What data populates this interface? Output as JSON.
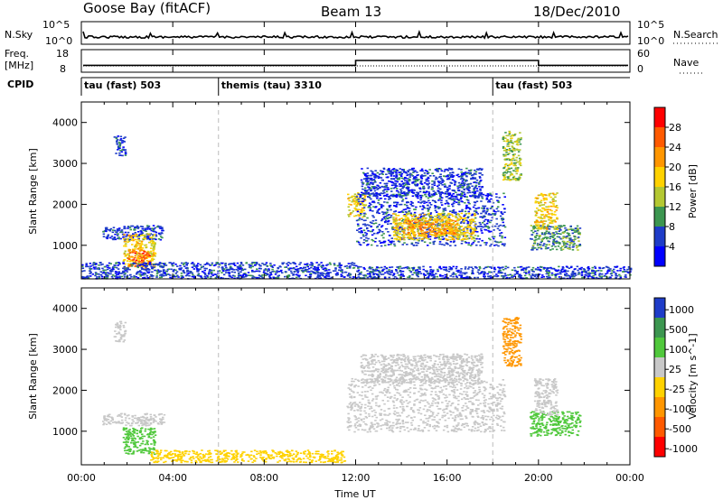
{
  "header": {
    "station": "Goose Bay (fitACF)",
    "beam": "Beam 13",
    "date": "18/Dec/2010"
  },
  "noise_panel": {
    "left_label": "N.Sky",
    "right_label": "N.Search",
    "ticks_left": [
      "10^5",
      "10^0"
    ],
    "ticks_right": [
      "10^5",
      "10^0"
    ]
  },
  "freq_panel": {
    "left_label_1": "Freq.",
    "left_label_2": "[MHz]",
    "right_label": "Nave",
    "ticks_left": [
      "18",
      "8"
    ],
    "ticks_right": [
      "60",
      "0"
    ]
  },
  "cpid": {
    "label": "CPID",
    "segments": [
      {
        "text": "tau (fast) 503",
        "start": 0
      },
      {
        "text": "themis (tau) 3310",
        "start": 6
      },
      {
        "text": "tau (fast) 503",
        "start": 18
      }
    ]
  },
  "power_panel": {
    "ylabel": "Slant Range [km]",
    "yticks": [
      "1000",
      "2000",
      "3000",
      "4000"
    ],
    "colorbar_label": "Power [dB]",
    "colorbar_ticks": [
      "28",
      "24",
      "20",
      "16",
      "12",
      "8",
      "4"
    ],
    "colorbar_colors": [
      "#ff0000",
      "#ff5a00",
      "#ff9600",
      "#ffd200",
      "#b4c832",
      "#3c9650",
      "#1e3cc8",
      "#0000ff"
    ]
  },
  "velocity_panel": {
    "ylabel": "Slant Range [km]",
    "yticks": [
      "1000",
      "2000",
      "3000",
      "4000"
    ],
    "colorbar_label": "Velocity [m s^-1]",
    "colorbar_ticks": [
      "1000",
      "500",
      "100",
      "25",
      "-25",
      "-100",
      "-500",
      "-1000"
    ],
    "colorbar_colors": [
      "#1e3cc8",
      "#3c9650",
      "#50c83c",
      "#c8c8c8",
      "#ffd200",
      "#ff9600",
      "#ff5a00",
      "#ff0000"
    ]
  },
  "x_axis": {
    "label": "Time UT",
    "ticks": [
      "00:00",
      "04:00",
      "08:00",
      "12:00",
      "16:00",
      "20:00",
      "00:00"
    ]
  },
  "chart_data": {
    "type": "heatmap",
    "x_range_hours": [
      0,
      24
    ],
    "y_range_km": [
      180,
      4500
    ],
    "power_regions": [
      {
        "t0": 0.9,
        "t1": 3.6,
        "r0": 1150,
        "r1": 1500,
        "db": 8
      },
      {
        "t0": 1.8,
        "t1": 3.2,
        "r0": 450,
        "r1": 1300,
        "db": 20
      },
      {
        "t0": 2.0,
        "t1": 3.0,
        "r0": 500,
        "r1": 900,
        "db": 28
      },
      {
        "t0": 1.4,
        "t1": 1.9,
        "r0": 3200,
        "r1": 3700,
        "db": 8
      },
      {
        "t0": 0.0,
        "t1": 12.0,
        "r0": 200,
        "r1": 600,
        "db": 8
      },
      {
        "t0": 11.6,
        "t1": 12.4,
        "r0": 1700,
        "r1": 2300,
        "db": 20
      },
      {
        "t0": 12.0,
        "t1": 18.5,
        "r0": 1000,
        "r1": 2300,
        "db": 8
      },
      {
        "t0": 13.6,
        "t1": 17.2,
        "r0": 1150,
        "r1": 1800,
        "db": 20
      },
      {
        "t0": 14.2,
        "t1": 16.4,
        "r0": 1250,
        "r1": 1650,
        "db": 24
      },
      {
        "t0": 12.2,
        "t1": 17.5,
        "r0": 2200,
        "r1": 2900,
        "db": 8
      },
      {
        "t0": 18.4,
        "t1": 19.2,
        "r0": 2600,
        "r1": 3800,
        "db": 16
      },
      {
        "t0": 19.6,
        "t1": 21.8,
        "r0": 900,
        "r1": 1500,
        "db": 12
      },
      {
        "t0": 19.8,
        "t1": 20.8,
        "r0": 1400,
        "r1": 2300,
        "db": 20
      },
      {
        "t0": 12.0,
        "t1": 24.0,
        "r0": 200,
        "r1": 500,
        "db": 8
      }
    ],
    "velocity_regions": [
      {
        "t0": 0.9,
        "t1": 3.6,
        "r0": 1150,
        "r1": 1450,
        "v": 0
      },
      {
        "t0": 1.8,
        "t1": 3.2,
        "r0": 450,
        "r1": 1100,
        "v": 100
      },
      {
        "t0": 1.4,
        "t1": 1.9,
        "r0": 3200,
        "r1": 3700,
        "v": 0
      },
      {
        "t0": 3.0,
        "t1": 11.5,
        "r0": 250,
        "r1": 550,
        "v": -25
      },
      {
        "t0": 11.6,
        "t1": 18.5,
        "r0": 1000,
        "r1": 2300,
        "v": 0
      },
      {
        "t0": 12.2,
        "t1": 17.5,
        "r0": 2200,
        "r1": 2900,
        "v": 0
      },
      {
        "t0": 18.4,
        "t1": 19.2,
        "r0": 2600,
        "r1": 3800,
        "v": -100
      },
      {
        "t0": 19.6,
        "t1": 21.8,
        "r0": 900,
        "r1": 1500,
        "v": 100
      },
      {
        "t0": 19.8,
        "t1": 20.8,
        "r0": 1400,
        "r1": 2300,
        "v": 0
      }
    ],
    "frequency_steps": [
      {
        "t0": 0,
        "t1": 12,
        "mhz": 10
      },
      {
        "t0": 12,
        "t1": 20,
        "mhz": 13
      },
      {
        "t0": 20,
        "t1": 24,
        "mhz": 10
      }
    ]
  }
}
